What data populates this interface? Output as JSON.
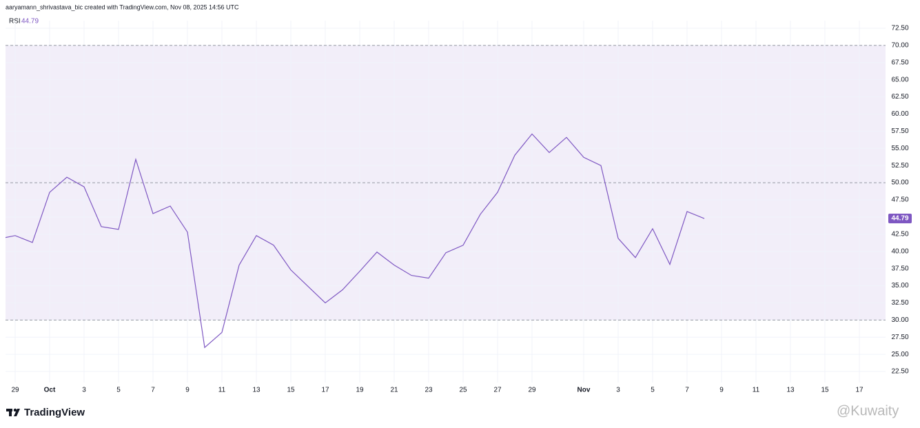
{
  "header": "aaryamann_shrivastava_bic created with TradingView.com, Nov 08, 2025 14:56 UTC",
  "logo": "TradingView",
  "watermark": "@Kuwaity",
  "chart_data": {
    "type": "line",
    "series_name": "RSI",
    "color": "#7e57c2",
    "categories": [
      null,
      "29",
      null,
      "Oct",
      null,
      "3",
      null,
      "5",
      null,
      "7",
      null,
      "9",
      null,
      "11",
      null,
      "13",
      null,
      "15",
      null,
      "17",
      null,
      "19",
      null,
      "21",
      null,
      "23",
      null,
      "25",
      null,
      "27",
      null,
      "29",
      null,
      null,
      "Nov",
      null,
      "3",
      null,
      "5",
      null,
      "7",
      null,
      "9",
      null,
      "11",
      null,
      "13",
      null,
      "15",
      null,
      "17"
    ],
    "values": [
      41.8,
      42.3,
      41.3,
      48.6,
      50.8,
      49.4,
      43.6,
      43.2,
      53.4,
      45.5,
      46.6,
      42.8,
      26.0,
      28.2,
      38.0,
      42.3,
      40.9,
      37.3,
      34.9,
      32.5,
      34.4,
      37.1,
      39.9,
      38.0,
      36.5,
      36.1,
      39.8,
      40.9,
      45.4,
      48.6,
      54.0,
      57.1,
      54.4,
      56.6,
      53.7,
      52.5,
      41.9,
      39.1,
      43.3,
      38.1,
      45.8,
      44.79,
      null,
      null,
      null,
      null,
      null,
      null,
      null,
      null,
      null
    ],
    "ylim": [
      20.9,
      73.6
    ],
    "yticks": [
      {
        "value": 22.5,
        "label": "22.50"
      },
      {
        "value": 25,
        "label": "25.00"
      },
      {
        "value": 27.5,
        "label": "27.50"
      },
      {
        "value": 30,
        "label": "30.00"
      },
      {
        "value": 32.5,
        "label": "32.50"
      },
      {
        "value": 35,
        "label": "35.00"
      },
      {
        "value": 37.5,
        "label": "37.50"
      },
      {
        "value": 40,
        "label": "40.00"
      },
      {
        "value": 42.5,
        "label": "42.50"
      },
      {
        "value": 45,
        "label": "45.00"
      },
      {
        "value": 47.5,
        "label": "47.50"
      },
      {
        "value": 50,
        "label": "50.00"
      },
      {
        "value": 52.5,
        "label": "52.50"
      },
      {
        "value": 55,
        "label": "55.00"
      },
      {
        "value": 57.5,
        "label": "57.50"
      },
      {
        "value": 60,
        "label": "60.00"
      },
      {
        "value": 62.5,
        "label": "62.50"
      },
      {
        "value": 65,
        "label": "65.00"
      },
      {
        "value": 67.5,
        "label": "67.50"
      },
      {
        "value": 70,
        "label": "70.00"
      },
      {
        "value": 72.5,
        "label": "72.50"
      }
    ],
    "band": [
      30,
      70
    ],
    "levels": [
      70,
      50,
      30
    ],
    "grid": true
  }
}
